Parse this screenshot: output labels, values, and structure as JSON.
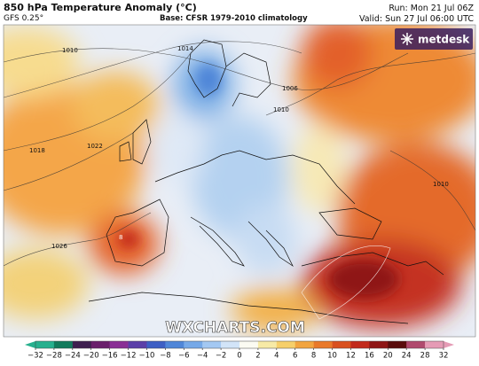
{
  "header": {
    "title": "850 hPa Temperature Anomaly (°C)",
    "model": "GFS 0.25°",
    "base": "Base: CFSR 1979-2010 climatology",
    "run": "Run: Mon 21 Jul 06Z",
    "valid": "Valid: Sun 27 Jul 06:00 UTC"
  },
  "logo": "metdesk",
  "watermark": "WXCHARTS.COM",
  "isobar_labels": [
    1010,
    1014,
    1018,
    1022,
    1026,
    1006,
    1010,
    1010,
    8
  ],
  "colorbar": {
    "ticks": [
      {
        "value": -32,
        "label": "−32"
      },
      {
        "value": -28,
        "label": "−28"
      },
      {
        "value": -24,
        "label": "−24"
      },
      {
        "value": -20,
        "label": "−20"
      },
      {
        "value": -16,
        "label": "−16"
      },
      {
        "value": -12,
        "label": "−12"
      },
      {
        "value": -10,
        "label": "−10"
      },
      {
        "value": -8,
        "label": "−8"
      },
      {
        "value": -6,
        "label": "−6"
      },
      {
        "value": -4,
        "label": "−4"
      },
      {
        "value": -2,
        "label": "−2"
      },
      0,
      2,
      4,
      6,
      8,
      10,
      12,
      16,
      20,
      24,
      28,
      32
    ],
    "colors": [
      "#27b08e",
      "#137a5c",
      "#3e1f4f",
      "#6a1f6b",
      "#8a2f95",
      "#5b3fa8",
      "#3d5fc4",
      "#4f86d8",
      "#76a9e8",
      "#a3c8f2",
      "#d2e4f8",
      "#fbfbf2",
      "#f7eaa6",
      "#f6cf6a",
      "#f2a43f",
      "#e9792a",
      "#d9501f",
      "#c22a1c",
      "#8f1616",
      "#5a0d0d",
      "#b04a6e",
      "#e59bb5"
    ]
  }
}
